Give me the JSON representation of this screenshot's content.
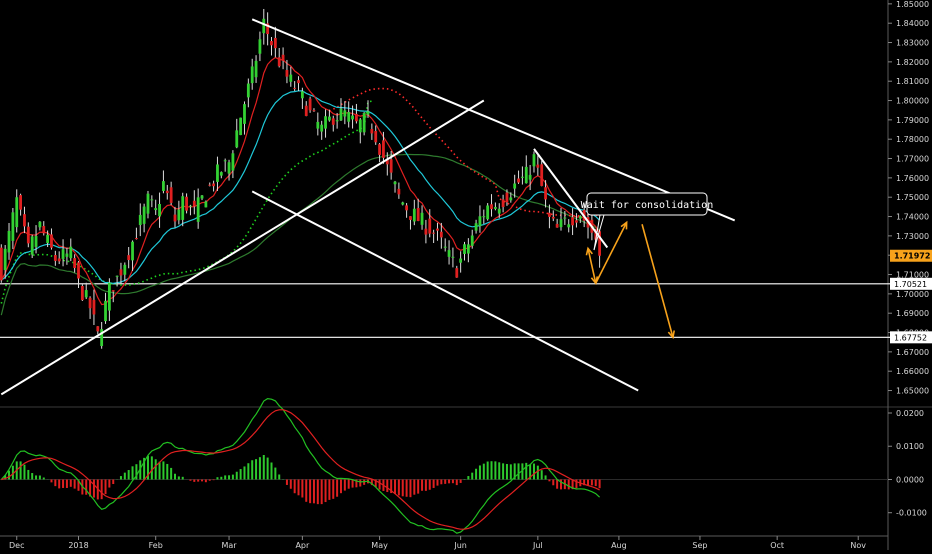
{
  "chart_data": [
    {
      "type": "candlestick",
      "title": "",
      "price_axis": {
        "ylim": [
          1.642,
          1.852
        ],
        "ticks": [
          "1.85000",
          "1.84000",
          "1.83000",
          "1.82000",
          "1.81000",
          "1.80000",
          "1.79000",
          "1.78000",
          "1.77000",
          "1.76000",
          "1.75000",
          "1.74000",
          "1.73000",
          "1.72000",
          "1.71000",
          "1.70000",
          "1.69000",
          "1.68000",
          "1.67000",
          "1.66000",
          "1.65000"
        ],
        "tick_values": [
          1.85,
          1.84,
          1.83,
          1.82,
          1.81,
          1.8,
          1.79,
          1.78,
          1.77,
          1.76,
          1.75,
          1.74,
          1.73,
          1.72,
          1.71,
          1.7,
          1.69,
          1.68,
          1.67,
          1.66,
          1.65
        ],
        "current_price": "1.71972",
        "current_price_value": 1.71972,
        "current_price_color": "#f7a21b",
        "level_labels": [
          {
            "text": "1.70521",
            "value": 1.70521
          },
          {
            "text": "1.67752",
            "value": 1.67752
          }
        ]
      },
      "time_axis": {
        "labels": [
          "Dec",
          "2018",
          "Feb",
          "Mar",
          "Apr",
          "May",
          "Jun",
          "Jul",
          "Aug",
          "Sep",
          "Oct",
          "Nov"
        ],
        "label_bar_index": [
          -16,
          0,
          20,
          39,
          58,
          78,
          99,
          119,
          140,
          161,
          181,
          202
        ]
      },
      "candles_ohlc": [],
      "overlays": {
        "ema_fast_color": "#e02020",
        "ema_mid_color": "#1fc8d8",
        "sma_dotted_green_color": "#1fd31f",
        "sma_dotted_red_color": "#ff2a2a",
        "sma_slow_color": "#2e7a2e"
      },
      "horizontal_levels": [
        1.70521,
        1.67752
      ],
      "trend_lines": [
        {
          "name": "descending-resistance",
          "from": {
            "bar": 45,
            "price": 1.842
          },
          "to": {
            "bar": 170,
            "price": 1.738
          }
        },
        {
          "name": "ascending-support",
          "from": {
            "bar": -20,
            "price": 1.648
          },
          "to": {
            "bar": 105,
            "price": 1.8
          }
        },
        {
          "name": "channel-lower",
          "from": {
            "bar": 45,
            "price": 1.753
          },
          "to": {
            "bar": 145,
            "price": 1.65
          }
        },
        {
          "name": "wedge-upper",
          "from": {
            "bar": 118,
            "price": 1.775
          },
          "to": {
            "bar": 137,
            "price": 1.724
          }
        }
      ],
      "projection_arrows": [
        {
          "from": {
            "bar": 132,
            "price": 1.7235
          },
          "to": {
            "bar": 134,
            "price": 1.7055
          }
        },
        {
          "from": {
            "bar": 134,
            "price": 1.7055
          },
          "to": {
            "bar": 142,
            "price": 1.737
          }
        },
        {
          "from": {
            "bar": 146,
            "price": 1.736
          },
          "to": {
            "bar": 154,
            "price": 1.6775
          }
        }
      ],
      "projection_color": "#f7a21b",
      "annotation": {
        "text": "Wait for consolidation"
      }
    },
    {
      "type": "histogram",
      "title": "",
      "indicator": "MACD",
      "ylim": [
        -0.017,
        0.0215
      ],
      "ticks": [
        "0.0200",
        "0.0100",
        "0.0000",
        "-0.0100"
      ],
      "tick_values": [
        0.02,
        0.01,
        0.0,
        -0.01
      ],
      "histogram_up_color": "#2ec92e",
      "histogram_down_color": "#e02020",
      "macd_line_color": "#22c022",
      "signal_line_color": "#e02020"
    }
  ]
}
